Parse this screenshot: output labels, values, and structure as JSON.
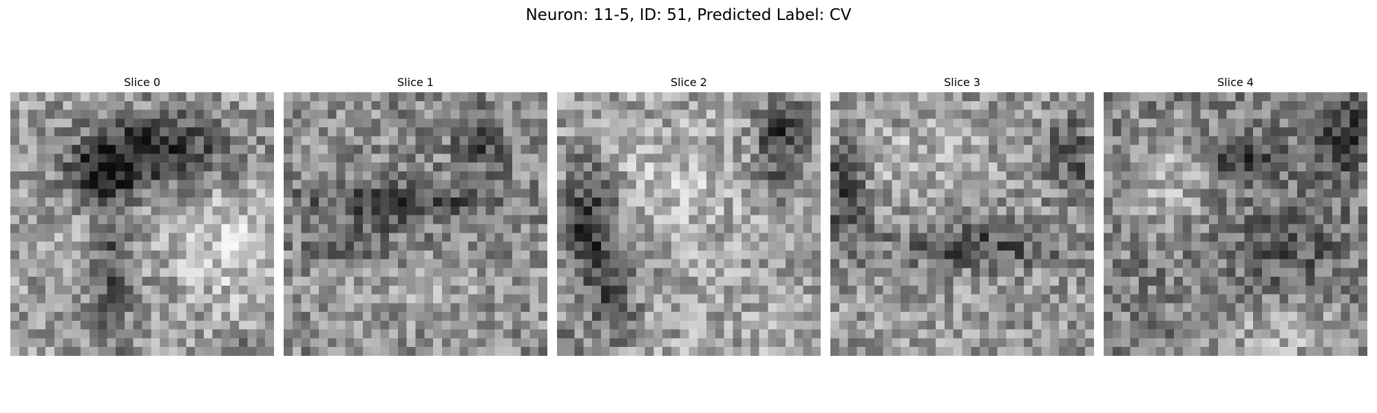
{
  "figure": {
    "title": "Neuron: 11-5, ID: 51, Predicted Label: CV"
  },
  "slices": [
    {
      "title": "Slice 0",
      "pattern": "dark-top-blob-with-vertical-stem"
    },
    {
      "title": "Slice 1",
      "pattern": "dark-horizontal-band-mid"
    },
    {
      "title": "Slice 2",
      "pattern": "dark-left-and-top-right-regions"
    },
    {
      "title": "Slice 3",
      "pattern": "dark-left-edge-and-lower-band"
    },
    {
      "title": "Slice 4",
      "pattern": "light-ring-with-dark-center"
    }
  ],
  "colormap": "gray"
}
